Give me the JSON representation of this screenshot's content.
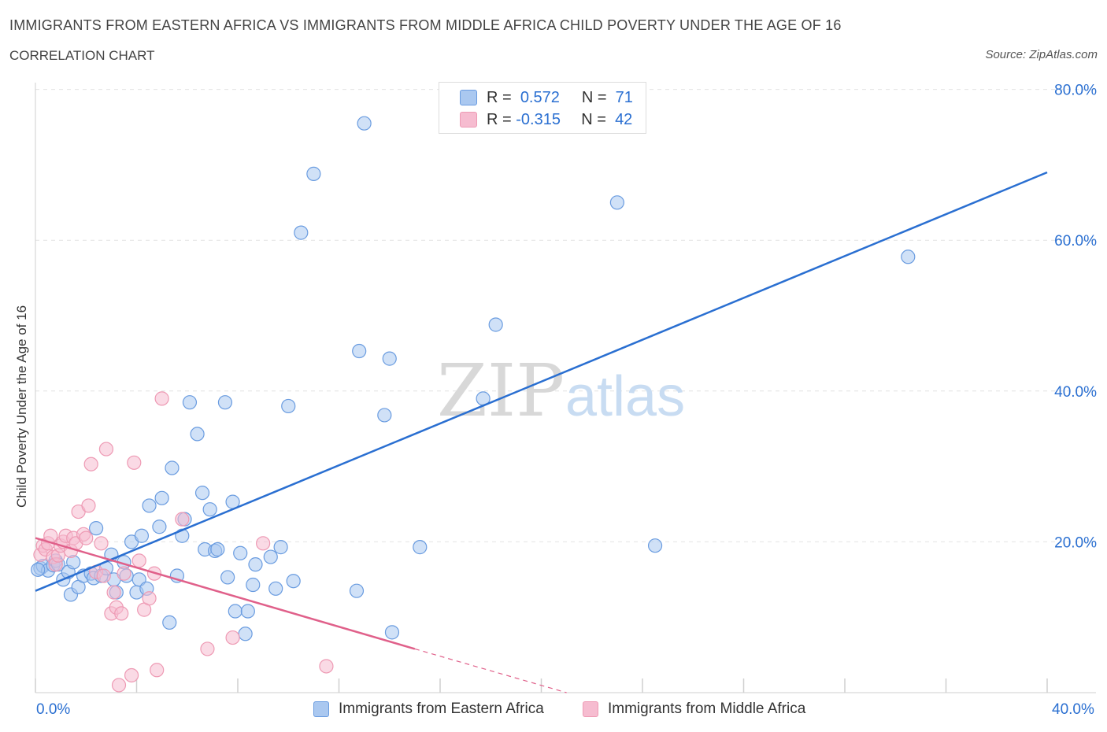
{
  "title": "IMMIGRANTS FROM EASTERN AFRICA VS IMMIGRANTS FROM MIDDLE AFRICA CHILD POVERTY UNDER THE AGE OF 16",
  "subtitle": "CORRELATION CHART",
  "source": "Source: ZipAtlas.com",
  "watermark": {
    "zip": "ZIP",
    "atlas": "atlas"
  },
  "legend": {
    "r_label": "R =",
    "n_label": "N =",
    "series": [
      {
        "r": "0.572",
        "n": "71",
        "color": "#aac8f0"
      },
      {
        "r": "-0.315",
        "n": "42",
        "color": "#f6bcd0"
      }
    ]
  },
  "bottom_legend": [
    "Immigrants from Eastern Africa",
    "Immigrants from Middle Africa"
  ],
  "chart_data": {
    "type": "scatter",
    "xlabel": "",
    "ylabel": "Child Poverty Under the Age of 16",
    "xlim": [
      0,
      40
    ],
    "ylim": [
      0,
      80
    ],
    "x_tick_labels": [
      "0.0%",
      "40.0%"
    ],
    "y_ticks": [
      20,
      40,
      60,
      80
    ],
    "y_tick_labels": [
      "20.0%",
      "40.0%",
      "60.0%",
      "80.0%"
    ],
    "series": [
      {
        "name": "Immigrants from Eastern Africa",
        "color": "#6a9ce0",
        "fill": "#aac8f0",
        "line_color": "#2a6fd1",
        "trend": {
          "x0": 0,
          "y0": 13.5,
          "x1": 40,
          "y1": 69.0
        },
        "points": [
          [
            0.2,
            16.5
          ],
          [
            0.3,
            16.8
          ],
          [
            0.5,
            16.2
          ],
          [
            0.7,
            16.9
          ],
          [
            0.8,
            17.5
          ],
          [
            0.9,
            17.0
          ],
          [
            1.1,
            15.0
          ],
          [
            1.3,
            16.0
          ],
          [
            1.4,
            13.0
          ],
          [
            1.5,
            17.3
          ],
          [
            1.7,
            14.0
          ],
          [
            1.9,
            15.5
          ],
          [
            2.2,
            15.8
          ],
          [
            2.3,
            15.2
          ],
          [
            2.4,
            21.8
          ],
          [
            2.6,
            15.5
          ],
          [
            2.8,
            16.5
          ],
          [
            3.0,
            18.3
          ],
          [
            3.1,
            15.0
          ],
          [
            3.2,
            13.3
          ],
          [
            3.5,
            17.3
          ],
          [
            3.6,
            15.5
          ],
          [
            3.8,
            20.0
          ],
          [
            4.0,
            13.3
          ],
          [
            4.1,
            15.0
          ],
          [
            4.2,
            20.8
          ],
          [
            4.4,
            13.8
          ],
          [
            4.5,
            24.8
          ],
          [
            4.9,
            22.0
          ],
          [
            5.0,
            25.8
          ],
          [
            5.3,
            9.3
          ],
          [
            5.4,
            29.8
          ],
          [
            5.6,
            15.5
          ],
          [
            5.8,
            20.8
          ],
          [
            5.9,
            23.0
          ],
          [
            6.1,
            38.5
          ],
          [
            6.4,
            34.3
          ],
          [
            6.6,
            26.5
          ],
          [
            6.7,
            19.0
          ],
          [
            6.9,
            24.3
          ],
          [
            7.1,
            18.8
          ],
          [
            7.2,
            19.0
          ],
          [
            7.5,
            38.5
          ],
          [
            7.6,
            15.3
          ],
          [
            7.8,
            25.3
          ],
          [
            7.9,
            10.8
          ],
          [
            8.1,
            18.5
          ],
          [
            8.3,
            7.8
          ],
          [
            8.4,
            10.8
          ],
          [
            8.6,
            14.3
          ],
          [
            8.7,
            17.0
          ],
          [
            9.3,
            18.0
          ],
          [
            9.5,
            13.8
          ],
          [
            9.7,
            19.3
          ],
          [
            10.0,
            38.0
          ],
          [
            10.2,
            14.8
          ],
          [
            10.5,
            61.0
          ],
          [
            11.0,
            68.8
          ],
          [
            12.8,
            45.3
          ],
          [
            13.0,
            75.5
          ],
          [
            12.7,
            13.5
          ],
          [
            13.8,
            36.8
          ],
          [
            14.0,
            44.3
          ],
          [
            14.1,
            8.0
          ],
          [
            15.2,
            19.3
          ],
          [
            17.7,
            39.0
          ],
          [
            18.2,
            48.8
          ],
          [
            23.0,
            65.0
          ],
          [
            24.5,
            19.5
          ],
          [
            34.5,
            57.8
          ],
          [
            0.1,
            16.3
          ]
        ]
      },
      {
        "name": "Immigrants from Middle Africa",
        "color": "#ee9ab4",
        "fill": "#f6bcd0",
        "line_color": "#e0608a",
        "trend": {
          "x0": 0,
          "y0": 20.5,
          "x1": 15,
          "y1": 5.8
        },
        "trend_dashed": {
          "x0": 15,
          "y0": 5.8,
          "x1": 21,
          "y1": 0
        },
        "points": [
          [
            0.2,
            18.3
          ],
          [
            0.3,
            19.5
          ],
          [
            0.4,
            19.0
          ],
          [
            0.5,
            19.8
          ],
          [
            0.6,
            20.8
          ],
          [
            0.7,
            18.0
          ],
          [
            0.8,
            17.0
          ],
          [
            0.9,
            18.2
          ],
          [
            1.0,
            19.5
          ],
          [
            1.1,
            20.0
          ],
          [
            1.2,
            20.8
          ],
          [
            1.4,
            18.8
          ],
          [
            1.5,
            20.5
          ],
          [
            1.6,
            19.8
          ],
          [
            1.7,
            24.0
          ],
          [
            1.9,
            21.0
          ],
          [
            2.0,
            20.5
          ],
          [
            2.1,
            24.8
          ],
          [
            2.2,
            30.3
          ],
          [
            2.4,
            16.0
          ],
          [
            2.6,
            19.8
          ],
          [
            2.7,
            15.5
          ],
          [
            2.8,
            32.3
          ],
          [
            3.0,
            10.5
          ],
          [
            3.1,
            13.3
          ],
          [
            3.2,
            11.3
          ],
          [
            3.3,
            1.0
          ],
          [
            3.4,
            10.5
          ],
          [
            3.5,
            15.8
          ],
          [
            3.8,
            2.3
          ],
          [
            3.9,
            30.5
          ],
          [
            4.1,
            17.5
          ],
          [
            4.3,
            11.0
          ],
          [
            4.5,
            12.5
          ],
          [
            4.7,
            15.8
          ],
          [
            4.8,
            3.0
          ],
          [
            5.0,
            39.0
          ],
          [
            5.8,
            23.0
          ],
          [
            6.8,
            5.8
          ],
          [
            7.8,
            7.3
          ],
          [
            9.0,
            19.8
          ],
          [
            11.5,
            3.5
          ]
        ]
      }
    ]
  }
}
